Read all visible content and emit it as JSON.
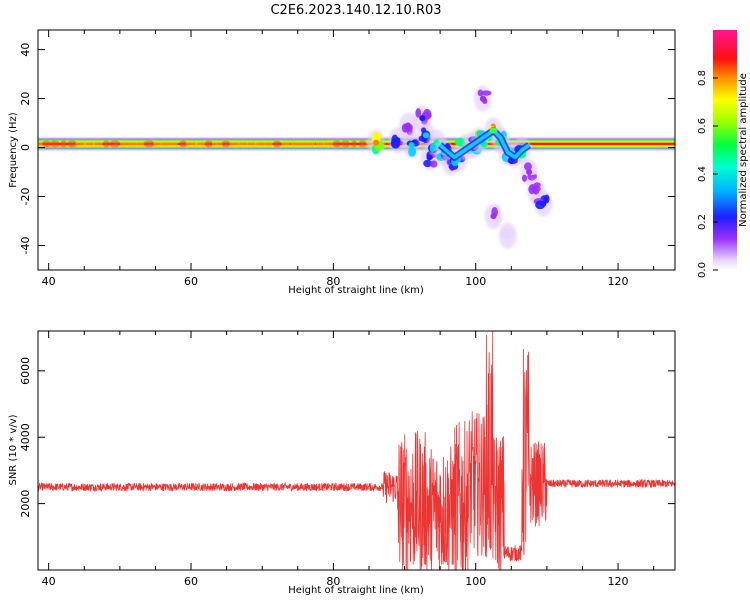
{
  "title": "C2E6.2023.140.12.10.R03",
  "chart_data": [
    {
      "type": "heatmap",
      "panel": "spectrogram",
      "xlabel": "Height of straight line (km)",
      "ylabel": "Frequency (Hz)",
      "xlim": [
        38.5,
        128
      ],
      "ylim": [
        -50,
        48
      ],
      "xticks": [
        40,
        60,
        80,
        100,
        120
      ],
      "yticks": [
        -40,
        -20,
        0,
        20,
        40
      ],
      "colorbar": {
        "label": "Normalized spectral amplitude",
        "range": [
          0,
          1
        ],
        "ticks": [
          0.0,
          0.2,
          0.4,
          0.6,
          0.8
        ],
        "colormap": [
          "#e8d6ff",
          "#9b30ff",
          "#1e1eff",
          "#00d0ff",
          "#00ff7f",
          "#7fff00",
          "#ffff00",
          "#ff8000",
          "#ff0000",
          "#ff1493"
        ]
      },
      "main_band": {
        "frequency": 1.5,
        "x_range": [
          38.5,
          128
        ],
        "amplitude": 0.85
      },
      "scatter_features": [
        {
          "x": 86,
          "f": 2,
          "amp": 0.7
        },
        {
          "x": 89,
          "f": 3,
          "amp": 0.25
        },
        {
          "x": 90.5,
          "f": 9,
          "amp": 0.15
        },
        {
          "x": 91,
          "f": 1,
          "amp": 0.35
        },
        {
          "x": 92.5,
          "f": 12,
          "amp": 0.2
        },
        {
          "x": 93,
          "f": 5,
          "amp": 0.3
        },
        {
          "x": 93.5,
          "f": -4,
          "amp": 0.25
        },
        {
          "x": 94.5,
          "f": 2,
          "amp": 0.4
        },
        {
          "x": 95.5,
          "f": -2,
          "amp": 0.35
        },
        {
          "x": 96.5,
          "f": -6,
          "amp": 0.2
        },
        {
          "x": 97.5,
          "f": -5,
          "amp": 0.3
        },
        {
          "x": 98.5,
          "f": 0,
          "amp": 0.45
        },
        {
          "x": 99.5,
          "f": 1,
          "amp": 0.4
        },
        {
          "x": 100.5,
          "f": 3,
          "amp": 0.5
        },
        {
          "x": 101,
          "f": 20,
          "amp": 0.15
        },
        {
          "x": 102.5,
          "f": 7,
          "amp": 0.75
        },
        {
          "x": 103.5,
          "f": 3,
          "amp": 0.55
        },
        {
          "x": 104.5,
          "f": -2,
          "amp": 0.4
        },
        {
          "x": 105.5,
          "f": -3,
          "amp": 0.35
        },
        {
          "x": 106.5,
          "f": -1,
          "amp": 0.45
        },
        {
          "x": 107.5,
          "f": -10,
          "amp": 0.15
        },
        {
          "x": 108.5,
          "f": -18,
          "amp": 0.15
        },
        {
          "x": 109.5,
          "f": -23,
          "amp": 0.25
        },
        {
          "x": 102.5,
          "f": -28,
          "amp": 0.1
        },
        {
          "x": 104.5,
          "f": -36,
          "amp": 0.08
        }
      ]
    },
    {
      "type": "line",
      "panel": "snr",
      "xlabel": "Height of straight line (km)",
      "ylabel": "SNR (10 * v/v)",
      "xlim": [
        38.5,
        128
      ],
      "ylim": [
        0,
        7200
      ],
      "xticks": [
        40,
        60,
        80,
        100,
        120
      ],
      "yticks": [
        2000,
        4000,
        6000
      ],
      "color": "#ee3333",
      "baseline": [
        {
          "x_range": [
            38.5,
            87
          ],
          "snr": 2500
        },
        {
          "x_range": [
            110,
            128
          ],
          "snr": 2600
        }
      ],
      "segments": [
        {
          "x_range": [
            87,
            89
          ],
          "center": 2500,
          "amp": 500
        },
        {
          "x_range": [
            89,
            93
          ],
          "center": 2000,
          "amp": 2200
        },
        {
          "x_range": [
            93,
            97
          ],
          "center": 1800,
          "amp": 2000
        },
        {
          "x_range": [
            97,
            99
          ],
          "center": 2000,
          "amp": 2500
        },
        {
          "x_range": [
            99,
            101.5
          ],
          "center": 2600,
          "amp": 2200
        },
        {
          "x_range": [
            101.5,
            102.5
          ],
          "center": 3500,
          "amp": 3700
        },
        {
          "x_range": [
            102.5,
            104
          ],
          "center": 2000,
          "amp": 2200
        },
        {
          "x_range": [
            104,
            106.5
          ],
          "center": 500,
          "amp": 250
        },
        {
          "x_range": [
            106.5,
            107.5
          ],
          "center": 3400,
          "amp": 3400
        },
        {
          "x_range": [
            107.5,
            110
          ],
          "center": 2600,
          "amp": 1300
        }
      ]
    }
  ]
}
